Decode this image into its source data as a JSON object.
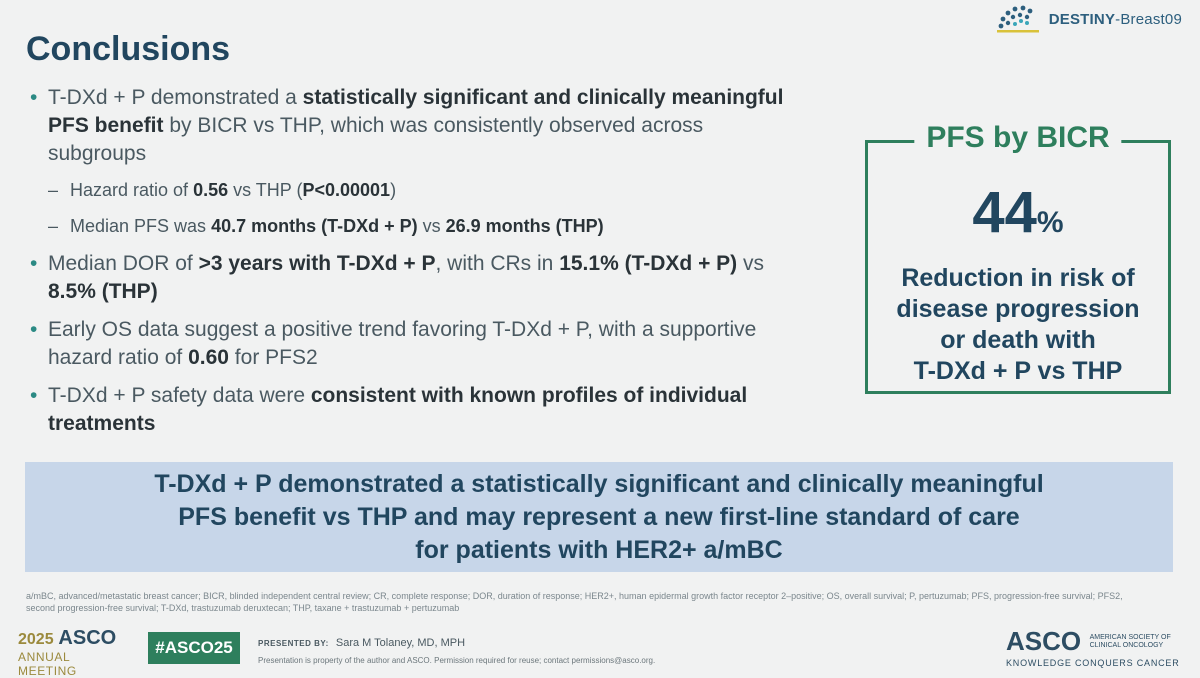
{
  "slide": {
    "title": "Conclusions",
    "logo_bold": "DESTINY",
    "logo_light": "-Breast09"
  },
  "bullets": [
    {
      "parts": [
        {
          "t": "T-DXd + P demonstrated a ",
          "b": false
        },
        {
          "t": "statistically significant and clinically meaningful PFS benefit",
          "b": true
        },
        {
          "t": " by BICR vs THP, which was consistently observed across subgroups",
          "b": false
        }
      ],
      "subs": [
        [
          {
            "t": "Hazard ratio of ",
            "b": false
          },
          {
            "t": "0.56",
            "b": true
          },
          {
            "t": " vs THP (",
            "b": false
          },
          {
            "t": "P<0.00001",
            "b": true
          },
          {
            "t": ")",
            "b": false
          }
        ],
        [
          {
            "t": "Median PFS was ",
            "b": false
          },
          {
            "t": "40.7 months (T-DXd + P)",
            "b": true
          },
          {
            "t": " vs ",
            "b": false
          },
          {
            "t": "26.9 months (THP)",
            "b": true
          }
        ]
      ]
    },
    {
      "parts": [
        {
          "t": "Median DOR of ",
          "b": false
        },
        {
          "t": ">3 years with T-DXd + P",
          "b": true
        },
        {
          "t": ", with CRs in ",
          "b": false
        },
        {
          "t": "15.1% (T-DXd + P)",
          "b": true
        },
        {
          "t": " vs ",
          "b": false
        },
        {
          "t": "8.5% (THP)",
          "b": true
        }
      ],
      "subs": []
    },
    {
      "parts": [
        {
          "t": "Early OS data suggest a positive trend favoring T-DXd + P, with a supportive hazard ratio of ",
          "b": false
        },
        {
          "t": "0.60",
          "b": true
        },
        {
          "t": " for PFS2",
          "b": false
        }
      ],
      "subs": []
    },
    {
      "parts": [
        {
          "t": "T-DXd + P safety data were ",
          "b": false
        },
        {
          "t": "consistent with known profiles of individual treatments",
          "b": true
        }
      ],
      "subs": []
    }
  ],
  "pfs_box": {
    "title": "PFS by BICR",
    "value": "44",
    "unit": "%",
    "line1": "Reduction in risk of",
    "line2": "disease progression",
    "line3": "or death with",
    "line4": "T-DXd + P vs THP"
  },
  "banner": {
    "line1": "T-DXd + P demonstrated a statistically significant and clinically meaningful",
    "line2": "PFS benefit vs THP and may represent a new first-line standard of care",
    "line3": "for patients with HER2+ a/mBC"
  },
  "footnote": "a/mBC, advanced/metastatic breast cancer; BICR, blinded independent central review; CR, complete response; DOR, duration of response; HER2+, human epidermal growth factor receptor 2–positive; OS, overall survival; P, pertuzumab; PFS, progression-free survival; PFS2, second progression-free survival; T-DXd, trastuzumab deruxtecan; THP, taxane + trastuzumab + pertuzumab",
  "footer": {
    "meeting_year": "2025",
    "meeting_org": "ASCO",
    "meeting_sub": "ANNUAL MEETING",
    "hashtag": "#ASCO25",
    "presented_label": "PRESENTED BY:",
    "presenter": "Sara M Tolaney, MD, MPH",
    "disclaimer": "Presentation is property of the author and ASCO. Permission required for reuse; contact permissions@asco.org.",
    "asco_word": "ASCO",
    "asco_society_1": "AMERICAN SOCIETY OF",
    "asco_society_2": "CLINICAL ONCOLOGY",
    "asco_tagline": "KNOWLEDGE CONQUERS CANCER"
  },
  "colors": {
    "title": "#21465f",
    "accent_green": "#2e7f5d",
    "banner_bg": "#c7d6e9",
    "bullet_dot": "#2b8a84"
  }
}
